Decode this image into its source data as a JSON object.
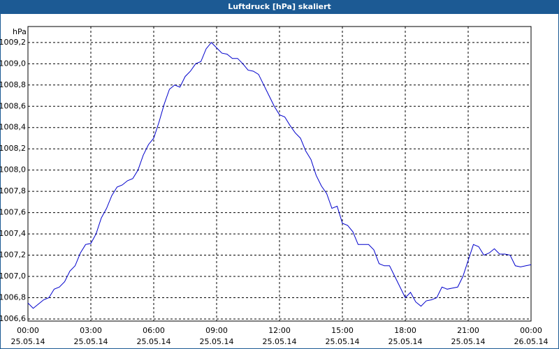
{
  "chart_data": {
    "type": "line",
    "title": "Luftdruck [hPa] skaliert",
    "y_label": "hPa",
    "x": [
      0,
      0.25,
      0.5,
      0.75,
      1,
      1.25,
      1.5,
      1.75,
      2,
      2.25,
      2.5,
      2.75,
      3,
      3.25,
      3.5,
      3.75,
      4,
      4.25,
      4.5,
      4.75,
      5,
      5.25,
      5.5,
      5.75,
      6,
      6.25,
      6.5,
      6.75,
      7,
      7.25,
      7.5,
      7.75,
      8,
      8.25,
      8.5,
      8.75,
      9,
      9.25,
      9.5,
      9.75,
      10,
      10.25,
      10.5,
      10.75,
      11,
      11.25,
      11.5,
      11.75,
      12,
      12.25,
      12.5,
      12.75,
      13,
      13.25,
      13.5,
      13.75,
      14,
      14.25,
      14.5,
      14.75,
      15,
      15.25,
      15.5,
      15.75,
      16,
      16.25,
      16.5,
      16.75,
      17,
      17.25,
      17.5,
      17.75,
      18,
      18.25,
      18.5,
      18.75,
      19,
      19.25,
      19.5,
      19.75,
      20,
      20.25,
      20.5,
      20.75,
      21,
      21.25,
      21.5,
      21.75,
      22,
      22.25,
      22.5,
      22.75,
      23,
      23.25,
      23.5,
      23.75,
      24
    ],
    "series": [
      {
        "name": "Luftdruck",
        "color": "#0000cc",
        "values": [
          1006.75,
          1006.7,
          1006.74,
          1006.78,
          1006.8,
          1006.88,
          1006.9,
          1006.95,
          1007.05,
          1007.1,
          1007.22,
          1007.3,
          1007.31,
          1007.4,
          1007.55,
          1007.64,
          1007.76,
          1007.84,
          1007.86,
          1007.9,
          1007.92,
          1008.0,
          1008.14,
          1008.24,
          1008.3,
          1008.45,
          1008.62,
          1008.76,
          1008.8,
          1008.78,
          1008.88,
          1008.93,
          1009.0,
          1009.02,
          1009.14,
          1009.2,
          1009.15,
          1009.1,
          1009.09,
          1009.05,
          1009.05,
          1009.0,
          1008.94,
          1008.93,
          1008.9,
          1008.8,
          1008.7,
          1008.6,
          1008.52,
          1008.5,
          1008.42,
          1008.35,
          1008.3,
          1008.18,
          1008.1,
          1007.95,
          1007.85,
          1007.78,
          1007.64,
          1007.66,
          1007.5,
          1007.48,
          1007.42,
          1007.3,
          1007.3,
          1007.3,
          1007.25,
          1007.12,
          1007.1,
          1007.1,
          1007.0,
          1006.9,
          1006.8,
          1006.85,
          1006.76,
          1006.72,
          1006.77,
          1006.78,
          1006.8,
          1006.9,
          1006.88,
          1006.89,
          1006.9,
          1007.0,
          1007.15,
          1007.3,
          1007.28,
          1007.2,
          1007.22,
          1007.26,
          1007.21,
          1007.21,
          1007.2,
          1007.1,
          1007.09,
          1007.1,
          1007.11
        ]
      }
    ],
    "xlim": [
      0,
      24
    ],
    "ylim": [
      1006.58,
      1009.35
    ],
    "xticks": [
      {
        "value": 0,
        "label": "00:00",
        "date": "25.05.14"
      },
      {
        "value": 3,
        "label": "03:00",
        "date": "25.05.14"
      },
      {
        "value": 6,
        "label": "06:00",
        "date": "25.05.14"
      },
      {
        "value": 9,
        "label": "09:00",
        "date": "25.05.14"
      },
      {
        "value": 12,
        "label": "12:00",
        "date": "25.05.14"
      },
      {
        "value": 15,
        "label": "15:00",
        "date": "25.05.14"
      },
      {
        "value": 18,
        "label": "18:00",
        "date": "25.05.14"
      },
      {
        "value": 21,
        "label": "21:00",
        "date": "25.05.14"
      },
      {
        "value": 24,
        "label": "00:00",
        "date": "26.05.14"
      }
    ],
    "yticks": [
      {
        "value": 1006.6,
        "label": "1006,6"
      },
      {
        "value": 1006.8,
        "label": "1006,8"
      },
      {
        "value": 1007.0,
        "label": "1007,0"
      },
      {
        "value": 1007.2,
        "label": "1007,2"
      },
      {
        "value": 1007.4,
        "label": "1007,4"
      },
      {
        "value": 1007.6,
        "label": "1007,6"
      },
      {
        "value": 1007.8,
        "label": "1007,8"
      },
      {
        "value": 1008.0,
        "label": "1008,0"
      },
      {
        "value": 1008.2,
        "label": "1008,2"
      },
      {
        "value": 1008.4,
        "label": "1008,4"
      },
      {
        "value": 1008.6,
        "label": "1008,6"
      },
      {
        "value": 1008.8,
        "label": "1008,8"
      },
      {
        "value": 1009.0,
        "label": "1009,0"
      },
      {
        "value": 1009.2,
        "label": "1009,2"
      }
    ],
    "grid": true
  }
}
